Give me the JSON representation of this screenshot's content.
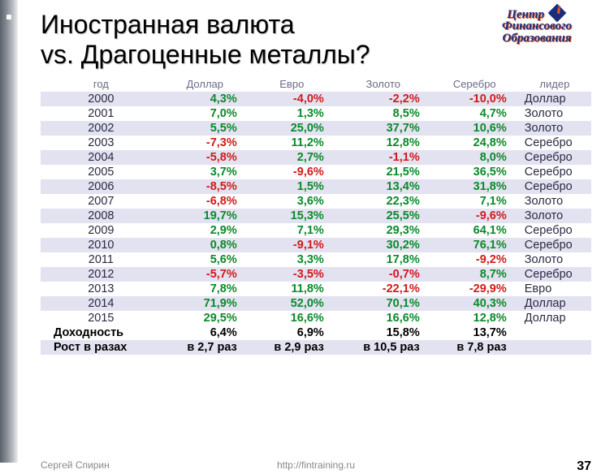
{
  "title_line1": "Иностранная валюта",
  "title_line2": "vs. Драгоценные металлы?",
  "logo": {
    "word1": "Центр",
    "word2": "Финансового",
    "word3": "Образования"
  },
  "table": {
    "headers": [
      "год",
      "Доллар",
      "Евро",
      "Золото",
      "Серебро",
      "лидер"
    ],
    "col_colors": {
      "pos": "#0a8a2a",
      "neg": "#d01a1a",
      "neu": "#222222"
    },
    "header_color": "#6a6a8a",
    "stripe_color": "#e3e2f0",
    "rows": [
      {
        "year": "2000",
        "vals": [
          {
            "t": "4,3%",
            "c": "pos"
          },
          {
            "t": "-4,0%",
            "c": "neg"
          },
          {
            "t": "-2,2%",
            "c": "neg"
          },
          {
            "t": "-10,0%",
            "c": "neg"
          }
        ],
        "leader": "Доллар"
      },
      {
        "year": "2001",
        "vals": [
          {
            "t": "7,0%",
            "c": "pos"
          },
          {
            "t": "1,3%",
            "c": "pos"
          },
          {
            "t": "8,5%",
            "c": "pos"
          },
          {
            "t": "4,7%",
            "c": "pos"
          }
        ],
        "leader": "Золото"
      },
      {
        "year": "2002",
        "vals": [
          {
            "t": "5,5%",
            "c": "pos"
          },
          {
            "t": "25,0%",
            "c": "pos"
          },
          {
            "t": "37,7%",
            "c": "pos"
          },
          {
            "t": "10,6%",
            "c": "pos"
          }
        ],
        "leader": "Золото"
      },
      {
        "year": "2003",
        "vals": [
          {
            "t": "-7,3%",
            "c": "neg"
          },
          {
            "t": "11,2%",
            "c": "pos"
          },
          {
            "t": "12,8%",
            "c": "pos"
          },
          {
            "t": "24,8%",
            "c": "pos"
          }
        ],
        "leader": "Серебро"
      },
      {
        "year": "2004",
        "vals": [
          {
            "t": "-5,8%",
            "c": "neg"
          },
          {
            "t": "2,7%",
            "c": "pos"
          },
          {
            "t": "-1,1%",
            "c": "neg"
          },
          {
            "t": "8,0%",
            "c": "pos"
          }
        ],
        "leader": "Серебро"
      },
      {
        "year": "2005",
        "vals": [
          {
            "t": "3,7%",
            "c": "pos"
          },
          {
            "t": "-9,6%",
            "c": "neg"
          },
          {
            "t": "21,5%",
            "c": "pos"
          },
          {
            "t": "36,5%",
            "c": "pos"
          }
        ],
        "leader": "Серебро"
      },
      {
        "year": "2006",
        "vals": [
          {
            "t": "-8,5%",
            "c": "neg"
          },
          {
            "t": "1,5%",
            "c": "pos"
          },
          {
            "t": "13,4%",
            "c": "pos"
          },
          {
            "t": "31,8%",
            "c": "pos"
          }
        ],
        "leader": "Серебро"
      },
      {
        "year": "2007",
        "vals": [
          {
            "t": "-6,8%",
            "c": "neg"
          },
          {
            "t": "3,6%",
            "c": "pos"
          },
          {
            "t": "22,3%",
            "c": "pos"
          },
          {
            "t": "7,1%",
            "c": "pos"
          }
        ],
        "leader": "Золото"
      },
      {
        "year": "2008",
        "vals": [
          {
            "t": "19,7%",
            "c": "pos"
          },
          {
            "t": "15,3%",
            "c": "pos"
          },
          {
            "t": "25,5%",
            "c": "pos"
          },
          {
            "t": "-9,6%",
            "c": "neg"
          }
        ],
        "leader": "Золото"
      },
      {
        "year": "2009",
        "vals": [
          {
            "t": "2,9%",
            "c": "pos"
          },
          {
            "t": "7,1%",
            "c": "pos"
          },
          {
            "t": "29,3%",
            "c": "pos"
          },
          {
            "t": "64,1%",
            "c": "pos"
          }
        ],
        "leader": "Серебро"
      },
      {
        "year": "2010",
        "vals": [
          {
            "t": "0,8%",
            "c": "pos"
          },
          {
            "t": "-9,1%",
            "c": "neg"
          },
          {
            "t": "30,2%",
            "c": "pos"
          },
          {
            "t": "76,1%",
            "c": "pos"
          }
        ],
        "leader": "Серебро"
      },
      {
        "year": "2011",
        "vals": [
          {
            "t": "5,6%",
            "c": "pos"
          },
          {
            "t": "3,3%",
            "c": "pos"
          },
          {
            "t": "17,8%",
            "c": "pos"
          },
          {
            "t": "-9,2%",
            "c": "neg"
          }
        ],
        "leader": "Золото"
      },
      {
        "year": "2012",
        "vals": [
          {
            "t": "-5,7%",
            "c": "neg"
          },
          {
            "t": "-3,5%",
            "c": "neg"
          },
          {
            "t": "-0,7%",
            "c": "neg"
          },
          {
            "t": "8,7%",
            "c": "pos"
          }
        ],
        "leader": "Серебро"
      },
      {
        "year": "2013",
        "vals": [
          {
            "t": "7,8%",
            "c": "pos"
          },
          {
            "t": "11,8%",
            "c": "pos"
          },
          {
            "t": "-22,1%",
            "c": "neg"
          },
          {
            "t": "-29,9%",
            "c": "neg"
          }
        ],
        "leader": "Евро"
      },
      {
        "year": "2014",
        "vals": [
          {
            "t": "71,9%",
            "c": "pos"
          },
          {
            "t": "52,0%",
            "c": "pos"
          },
          {
            "t": "70,1%",
            "c": "pos"
          },
          {
            "t": "40,3%",
            "c": "pos"
          }
        ],
        "leader": "Доллар"
      },
      {
        "year": "2015",
        "vals": [
          {
            "t": "29,5%",
            "c": "pos"
          },
          {
            "t": "16,6%",
            "c": "pos"
          },
          {
            "t": "16,6%",
            "c": "pos"
          },
          {
            "t": "12,8%",
            "c": "pos"
          }
        ],
        "leader": "Доллар"
      }
    ],
    "summary": [
      {
        "label": "Доходность",
        "vals": [
          "6,4%",
          "6,9%",
          "15,8%",
          "13,7%"
        ]
      },
      {
        "label": "Рост в разах",
        "vals": [
          "в 2,7 раз",
          "в 2,9 раз",
          "в 10,5 раз",
          "в 7,8 раз"
        ]
      }
    ]
  },
  "footer": {
    "author": "Сергей Спирин",
    "url": "http://fintraining.ru",
    "page": "37"
  }
}
